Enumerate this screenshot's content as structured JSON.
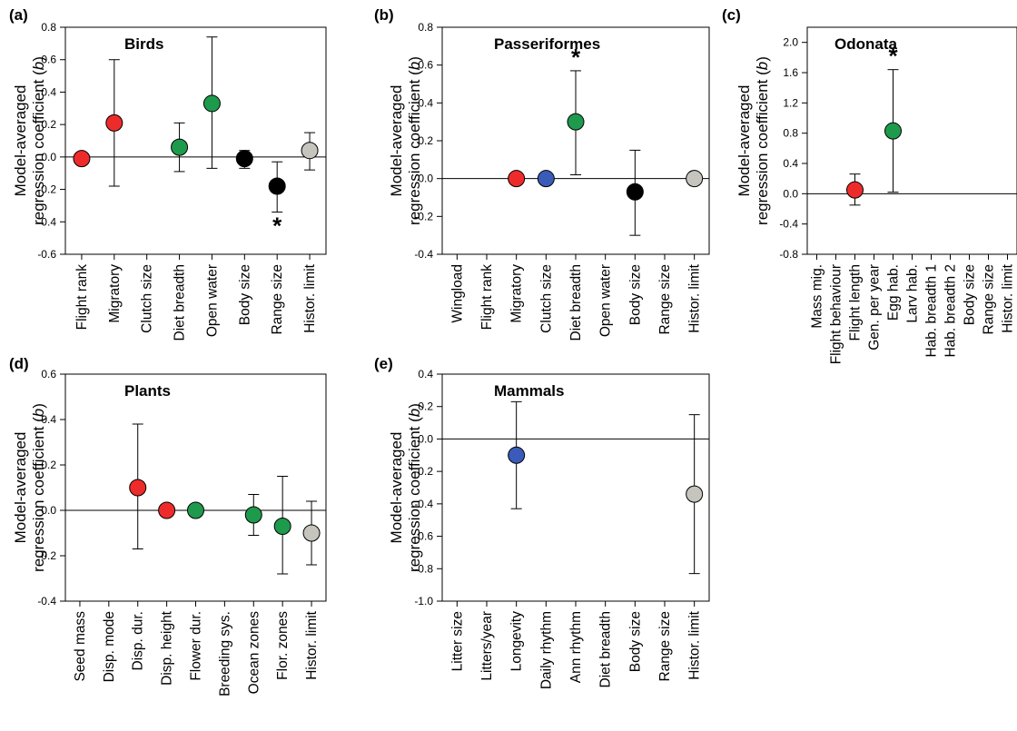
{
  "colors": {
    "red": "#ee2b2b",
    "blue": "#3a5bb8",
    "green": "#1e9a4c",
    "black": "#000000",
    "gray": "#c5c5bd"
  },
  "chart_data": [
    {
      "type": "scatter",
      "panel_label": "(a)",
      "title": "Birds",
      "ylabel": [
        "Model-averaged",
        "regression coefficient (b)"
      ],
      "ylim": [
        -0.6,
        0.8
      ],
      "yticks": [
        "0.8",
        "0.6",
        "0.4",
        "0.2",
        "0.0",
        "-0.2",
        "-0.4",
        "-0.6"
      ],
      "yticks_values": [
        0.8,
        0.6,
        0.4,
        0.2,
        0.0,
        -0.2,
        -0.4,
        -0.6
      ],
      "categories": [
        "Flight rank",
        "Migratory",
        "Clutch size",
        "Diet breadth",
        "Open water",
        "Body size",
        "Range size",
        "Histor. limit"
      ],
      "points": [
        {
          "category": "Flight rank",
          "value": -0.01,
          "lower": -0.01,
          "upper": -0.01,
          "color": "red"
        },
        {
          "category": "Migratory",
          "value": 0.21,
          "lower": -0.18,
          "upper": 0.6,
          "color": "red"
        },
        {
          "category": "Diet breadth",
          "value": 0.06,
          "lower": -0.09,
          "upper": 0.21,
          "color": "green"
        },
        {
          "category": "Open water",
          "value": 0.33,
          "lower": -0.07,
          "upper": 0.74,
          "color": "green"
        },
        {
          "category": "Body size",
          "value": -0.01,
          "lower": -0.07,
          "upper": 0.04,
          "color": "black"
        },
        {
          "category": "Range size",
          "value": -0.18,
          "lower": -0.34,
          "upper": -0.03,
          "color": "black"
        },
        {
          "category": "Histor. limit",
          "value": 0.04,
          "lower": -0.08,
          "upper": 0.15,
          "color": "gray"
        }
      ],
      "significant": [
        {
          "category": "Range size",
          "position": "below",
          "symbol": "*"
        }
      ]
    },
    {
      "type": "scatter",
      "panel_label": "(b)",
      "title": "Passeriformes",
      "ylabel": [
        "Model-averaged",
        "regression coefficient (b)"
      ],
      "ylim": [
        -0.4,
        0.8
      ],
      "yticks": [
        "0.8",
        "0.6",
        "0.4",
        "0.2",
        "0.0",
        "-0.2",
        "-0.4"
      ],
      "yticks_values": [
        0.8,
        0.6,
        0.4,
        0.2,
        0.0,
        -0.2,
        -0.4
      ],
      "categories": [
        "Wingload",
        "Flight rank",
        "Migratory",
        "Clutch size",
        "Diet breadth",
        "Open water",
        "Body size",
        "Range size",
        "Histor. limit"
      ],
      "points": [
        {
          "category": "Migratory",
          "value": 0.0,
          "lower": 0.0,
          "upper": 0.0,
          "color": "red"
        },
        {
          "category": "Clutch size",
          "value": 0.0,
          "lower": 0.0,
          "upper": 0.0,
          "color": "blue"
        },
        {
          "category": "Diet breadth",
          "value": 0.3,
          "lower": 0.02,
          "upper": 0.57,
          "color": "green"
        },
        {
          "category": "Body size",
          "value": -0.07,
          "lower": -0.3,
          "upper": 0.15,
          "color": "black"
        },
        {
          "category": "Histor. limit",
          "value": 0.0,
          "lower": 0.0,
          "upper": 0.0,
          "color": "gray"
        }
      ],
      "significant": [
        {
          "category": "Diet breadth",
          "position": "above",
          "symbol": "*"
        }
      ]
    },
    {
      "type": "scatter",
      "panel_label": "(c)",
      "title": "Odonata",
      "ylabel": [
        "Model-averaged",
        "regression coefficient (b)"
      ],
      "ylim": [
        -0.8,
        2.2
      ],
      "yticks": [
        "2.0",
        "1.6",
        "1.2",
        "0.8",
        "0.4",
        "0.0",
        "-0.4",
        "-0.8"
      ],
      "yticks_values": [
        2.0,
        1.6,
        1.2,
        0.8,
        0.4,
        0.0,
        -0.4,
        -0.8
      ],
      "categories": [
        "Mass mig.",
        "Flight behaviour",
        "Flight length",
        "Gen. per year",
        "Egg hab.",
        "Larv hab.",
        "Hab. breadth 1",
        "Hab. breadth 2",
        "Body size",
        "Range size",
        "Histor. limit"
      ],
      "points": [
        {
          "category": "Flight length",
          "value": 0.05,
          "lower": -0.15,
          "upper": 0.26,
          "color": "red"
        },
        {
          "category": "Egg hab.",
          "value": 0.83,
          "lower": 0.02,
          "upper": 1.64,
          "color": "green"
        }
      ],
      "significant": [
        {
          "category": "Egg hab.",
          "position": "above",
          "symbol": "*"
        }
      ]
    },
    {
      "type": "scatter",
      "panel_label": "(d)",
      "title": "Plants",
      "ylabel": [
        "Model-averaged",
        "regression coefficient (b)"
      ],
      "ylim": [
        -0.4,
        0.6
      ],
      "yticks": [
        "0.6",
        "0.4",
        "0.2",
        "0.0",
        "-0.2",
        "-0.4"
      ],
      "yticks_values": [
        0.6,
        0.4,
        0.2,
        0.0,
        -0.2,
        -0.4
      ],
      "categories": [
        "Seed mass",
        "Disp. mode",
        "Disp. dur.",
        "Disp. height",
        "Flower dur.",
        "Breeding sys.",
        "Ocean zones",
        "Flor. zones",
        "Histor. limit"
      ],
      "points": [
        {
          "category": "Disp. dur.",
          "value": 0.1,
          "lower": -0.17,
          "upper": 0.38,
          "color": "red"
        },
        {
          "category": "Disp. height",
          "value": 0.0,
          "lower": 0.0,
          "upper": 0.0,
          "color": "red"
        },
        {
          "category": "Flower dur.",
          "value": 0.0,
          "lower": 0.0,
          "upper": 0.0,
          "color": "green"
        },
        {
          "category": "Ocean zones",
          "value": -0.02,
          "lower": -0.11,
          "upper": 0.07,
          "color": "green"
        },
        {
          "category": "Flor. zones",
          "value": -0.07,
          "lower": -0.28,
          "upper": 0.15,
          "color": "green"
        },
        {
          "category": "Histor. limit",
          "value": -0.1,
          "lower": -0.24,
          "upper": 0.04,
          "color": "gray"
        }
      ],
      "significant": []
    },
    {
      "type": "scatter",
      "panel_label": "(e)",
      "title": "Mammals",
      "ylabel": [
        "Model-averaged",
        "regression coefficient (b)"
      ],
      "ylim": [
        -1.0,
        0.4
      ],
      "yticks": [
        "0.4",
        "0.2",
        "0.0",
        "-0.2",
        "-0.4",
        "-0.6",
        "-0.8",
        "-1.0"
      ],
      "yticks_values": [
        0.4,
        0.2,
        0.0,
        -0.2,
        -0.4,
        -0.6,
        -0.8,
        -1.0
      ],
      "categories": [
        "Litter size",
        "Litters/year",
        "Longevity",
        "Daily rhythm",
        "Ann rhythm",
        "Diet breadth",
        "Body size",
        "Range size",
        "Histor. limit"
      ],
      "points": [
        {
          "category": "Longevity",
          "value": -0.1,
          "lower": -0.43,
          "upper": 0.23,
          "color": "blue"
        },
        {
          "category": "Histor. limit",
          "value": -0.34,
          "lower": -0.83,
          "upper": 0.15,
          "color": "gray"
        }
      ],
      "significant": []
    }
  ]
}
